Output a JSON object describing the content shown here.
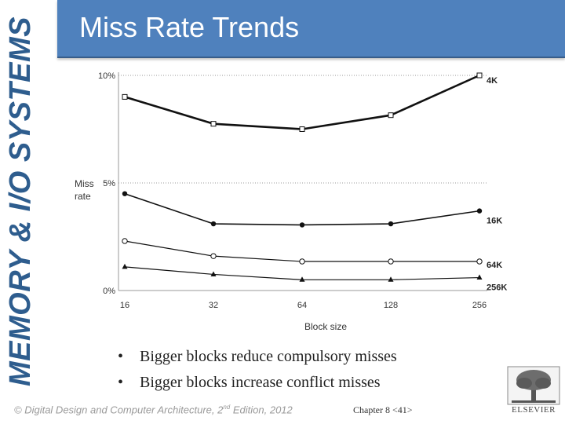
{
  "side_title": "MEMORY & I/O SYSTEMS",
  "slide_title": "Miss Rate Trends",
  "bullets": [
    "Bigger blocks reduce compulsory misses",
    "Bigger blocks increase conflict misses"
  ],
  "bullet_symbol": "•",
  "footer": {
    "copyright_prefix": "© Digital Design and Computer Architecture, 2",
    "copyright_sup": "nd",
    "copyright_suffix": " Edition, 2012",
    "chapter": "Chapter 8 <41>"
  },
  "logo": {
    "text": "ELSEVIER",
    "icon": "tree-logo-icon"
  },
  "colors": {
    "accent": "#4f81bd",
    "side_title": "#2e5d8e"
  },
  "chart_data": {
    "type": "line",
    "xlabel": "Block size",
    "ylabel_lines": [
      "Miss",
      "rate"
    ],
    "categories": [
      "16",
      "32",
      "64",
      "128",
      "256"
    ],
    "yticks": [
      {
        "value": 0,
        "label": "0%"
      },
      {
        "value": 5,
        "label": "5%"
      },
      {
        "value": 10,
        "label": "10%"
      }
    ],
    "ylim": [
      0,
      10
    ],
    "grid_lines_at": [
      5,
      10
    ],
    "series": [
      {
        "name": "4K",
        "marker": "square",
        "values": [
          9.0,
          7.75,
          7.5,
          8.15,
          10.0
        ]
      },
      {
        "name": "16K",
        "marker": "filled-circle",
        "values": [
          4.5,
          3.1,
          3.05,
          3.1,
          3.7
        ]
      },
      {
        "name": "64K",
        "marker": "open-circle",
        "values": [
          2.3,
          1.6,
          1.35,
          1.35,
          1.35
        ]
      },
      {
        "name": "256K",
        "marker": "filled-triangle",
        "values": [
          1.1,
          0.75,
          0.5,
          0.5,
          0.6
        ]
      }
    ]
  }
}
